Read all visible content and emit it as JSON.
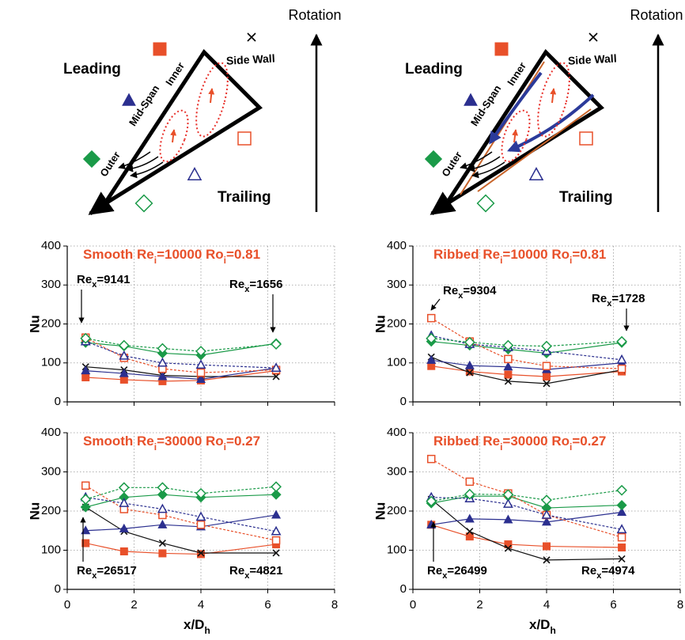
{
  "diagrams": [
    {
      "variant": "smooth",
      "labels": {
        "rotation": "Rotation",
        "side_wall": "Side Wall",
        "leading": "Leading",
        "inner": "Inner",
        "mid_span": "Mid-Span",
        "outer": "Outer",
        "trailing": "Trailing"
      }
    },
    {
      "variant": "ribbed",
      "labels": {
        "rotation": "Rotation",
        "side_wall": "Side Wall",
        "leading": "Leading",
        "inner": "Inner",
        "mid_span": "Mid-Span",
        "outer": "Outer",
        "trailing": "Trailing"
      }
    }
  ],
  "chart_data": [
    {
      "type": "line",
      "title": [
        "Smooth Re",
        "i",
        "=10000 Ro",
        "i",
        "=0.81"
      ],
      "ylabel": "Nu",
      "x": [
        0.55,
        1.7,
        2.85,
        4.0,
        6.25
      ],
      "xlim": [
        0,
        8
      ],
      "xticks": [
        0,
        2,
        4,
        6,
        8
      ],
      "ylim": [
        0,
        400
      ],
      "yticks": [
        0,
        100,
        200,
        300,
        400
      ],
      "grid": true,
      "series": [
        {
          "color": "#e8502a",
          "marker": "square",
          "filled": true,
          "dashed": false,
          "values": [
            63,
            57,
            53,
            55,
            80
          ]
        },
        {
          "color": "#111111",
          "marker": "x",
          "filled": true,
          "dashed": false,
          "values": [
            90,
            82,
            68,
            65,
            65
          ]
        },
        {
          "color": "#2b2f8f",
          "marker": "triangle",
          "filled": true,
          "dashed": false,
          "values": [
            80,
            73,
            65,
            58,
            87
          ]
        },
        {
          "color": "#1a9a48",
          "marker": "diamond",
          "filled": true,
          "dashed": false,
          "values": [
            152,
            143,
            125,
            120,
            150
          ]
        },
        {
          "color": "#e8502a",
          "marker": "square",
          "filled": false,
          "dashed": true,
          "values": [
            165,
            113,
            85,
            75,
            82
          ]
        },
        {
          "color": "#2b2f8f",
          "marker": "triangle",
          "filled": false,
          "dashed": true,
          "values": [
            155,
            118,
            100,
            95,
            87
          ]
        },
        {
          "color": "#1a9a48",
          "marker": "diamond",
          "filled": false,
          "dashed": true,
          "values": [
            163,
            145,
            137,
            130,
            148
          ]
        }
      ],
      "annotations": [
        [
          "Re",
          "x",
          "=9141"
        ],
        [
          "Re",
          "x",
          "=1656"
        ]
      ]
    },
    {
      "type": "line",
      "title": [
        "Ribbed Re",
        "i",
        "=10000 Ro",
        "i",
        "=0.81"
      ],
      "ylabel": "Nu",
      "x": [
        0.55,
        1.7,
        2.85,
        4.0,
        6.25
      ],
      "xlim": [
        0,
        8
      ],
      "xticks": [
        0,
        2,
        4,
        6,
        8
      ],
      "ylim": [
        0,
        400
      ],
      "yticks": [
        0,
        100,
        200,
        300,
        400
      ],
      "grid": true,
      "series": [
        {
          "color": "#e8502a",
          "marker": "square",
          "filled": true,
          "dashed": false,
          "values": [
            92,
            78,
            70,
            65,
            78
          ]
        },
        {
          "color": "#111111",
          "marker": "x",
          "filled": true,
          "dashed": false,
          "values": [
            115,
            75,
            53,
            47,
            82
          ]
        },
        {
          "color": "#2b2f8f",
          "marker": "triangle",
          "filled": true,
          "dashed": false,
          "values": [
            107,
            93,
            90,
            83,
            100
          ]
        },
        {
          "color": "#1a9a48",
          "marker": "diamond",
          "filled": true,
          "dashed": false,
          "values": [
            155,
            145,
            135,
            125,
            152
          ]
        },
        {
          "color": "#e8502a",
          "marker": "square",
          "filled": false,
          "dashed": true,
          "values": [
            215,
            155,
            110,
            92,
            85
          ]
        },
        {
          "color": "#2b2f8f",
          "marker": "triangle",
          "filled": false,
          "dashed": true,
          "values": [
            170,
            148,
            140,
            130,
            108
          ]
        },
        {
          "color": "#1a9a48",
          "marker": "diamond",
          "filled": false,
          "dashed": true,
          "values": [
            163,
            153,
            145,
            143,
            155
          ]
        }
      ],
      "annotations": [
        [
          "Re",
          "x",
          "=9304"
        ],
        [
          "Re",
          "x",
          "=1728"
        ]
      ]
    },
    {
      "type": "line",
      "title": [
        "Smooth Re",
        "i",
        "=30000 Ro",
        "i",
        "=0.27"
      ],
      "ylabel": "Nu",
      "xlabel": [
        "x/D",
        "h"
      ],
      "x": [
        0.55,
        1.7,
        2.85,
        4.0,
        6.25
      ],
      "xlim": [
        0,
        8
      ],
      "xticks": [
        0,
        2,
        4,
        6,
        8
      ],
      "ylim": [
        0,
        400
      ],
      "yticks": [
        0,
        100,
        200,
        300,
        400
      ],
      "grid": true,
      "series": [
        {
          "color": "#e8502a",
          "marker": "square",
          "filled": true,
          "dashed": false,
          "values": [
            118,
            97,
            92,
            90,
            115
          ]
        },
        {
          "color": "#111111",
          "marker": "x",
          "filled": true,
          "dashed": false,
          "values": [
            210,
            148,
            118,
            93,
            93
          ]
        },
        {
          "color": "#2b2f8f",
          "marker": "triangle",
          "filled": true,
          "dashed": false,
          "values": [
            150,
            155,
            165,
            160,
            190
          ]
        },
        {
          "color": "#1a9a48",
          "marker": "diamond",
          "filled": true,
          "dashed": false,
          "values": [
            210,
            235,
            242,
            235,
            242
          ]
        },
        {
          "color": "#e8502a",
          "marker": "square",
          "filled": false,
          "dashed": true,
          "values": [
            265,
            205,
            190,
            165,
            125
          ]
        },
        {
          "color": "#2b2f8f",
          "marker": "triangle",
          "filled": false,
          "dashed": true,
          "values": [
            235,
            220,
            205,
            185,
            148
          ]
        },
        {
          "color": "#1a9a48",
          "marker": "diamond",
          "filled": false,
          "dashed": true,
          "values": [
            230,
            260,
            260,
            245,
            262
          ]
        }
      ],
      "annotations": [
        [
          "Re",
          "x",
          "=26517"
        ],
        [
          "Re",
          "x",
          "=4821"
        ]
      ]
    },
    {
      "type": "line",
      "title": [
        "Ribbed Re",
        "i",
        "=30000 Ro",
        "i",
        "=0.27"
      ],
      "ylabel": "Nu",
      "xlabel": [
        "x/D",
        "h"
      ],
      "x": [
        0.55,
        1.7,
        2.85,
        4.0,
        6.25
      ],
      "xlim": [
        0,
        8
      ],
      "xticks": [
        0,
        2,
        4,
        6,
        8
      ],
      "ylim": [
        0,
        400
      ],
      "yticks": [
        0,
        100,
        200,
        300,
        400
      ],
      "grid": true,
      "series": [
        {
          "color": "#e8502a",
          "marker": "square",
          "filled": true,
          "dashed": false,
          "values": [
            165,
            135,
            115,
            110,
            107
          ]
        },
        {
          "color": "#111111",
          "marker": "x",
          "filled": true,
          "dashed": false,
          "values": [
            230,
            148,
            105,
            75,
            78
          ]
        },
        {
          "color": "#2b2f8f",
          "marker": "triangle",
          "filled": true,
          "dashed": false,
          "values": [
            165,
            180,
            178,
            172,
            197
          ]
        },
        {
          "color": "#1a9a48",
          "marker": "diamond",
          "filled": true,
          "dashed": false,
          "values": [
            220,
            238,
            238,
            208,
            215
          ]
        },
        {
          "color": "#e8502a",
          "marker": "square",
          "filled": false,
          "dashed": true,
          "values": [
            333,
            275,
            245,
            190,
            133
          ]
        },
        {
          "color": "#2b2f8f",
          "marker": "triangle",
          "filled": false,
          "dashed": true,
          "values": [
            235,
            232,
            218,
            190,
            153
          ]
        },
        {
          "color": "#1a9a48",
          "marker": "diamond",
          "filled": false,
          "dashed": true,
          "values": [
            225,
            243,
            242,
            228,
            253
          ]
        }
      ],
      "annotations": [
        [
          "Re",
          "x",
          "=26499"
        ],
        [
          "Re",
          "x",
          "=4974"
        ]
      ]
    }
  ]
}
